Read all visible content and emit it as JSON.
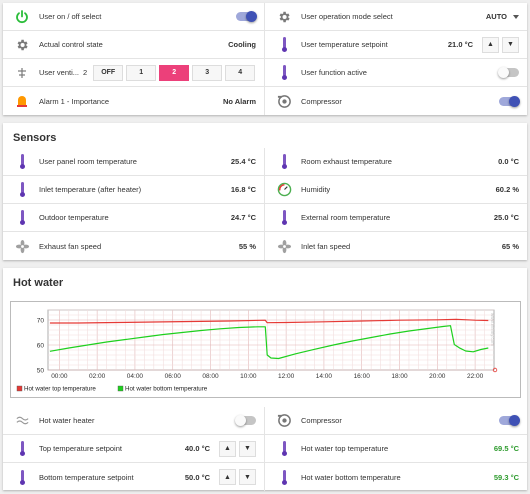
{
  "top": {
    "user_onoff": {
      "label": "User on / off select"
    },
    "op_mode": {
      "label": "User operation mode select",
      "value": "AUTO"
    },
    "control_state": {
      "label": "Actual control state",
      "value": "Cooling"
    },
    "temp_setpoint": {
      "label": "User temperature setpoint",
      "value": "21.0 °C"
    },
    "ventilation": {
      "label": "User venti...",
      "value": "2",
      "options": [
        "OFF",
        "1",
        "2",
        "3",
        "4"
      ],
      "selected": "2"
    },
    "function_active": {
      "label": "User function active"
    },
    "alarm": {
      "label": "Alarm 1 - Importance",
      "value": "No Alarm"
    },
    "compressor": {
      "label": "Compressor"
    }
  },
  "sensors": {
    "title": "Sensors",
    "items": [
      {
        "label": "User panel room temperature",
        "value": "25.4 °C"
      },
      {
        "label": "Room exhaust temperature",
        "value": "0.0 °C"
      },
      {
        "label": "Inlet temperature (after heater)",
        "value": "16.8 °C"
      },
      {
        "label": "Humidity",
        "value": "60.2 %"
      },
      {
        "label": "Outdoor temperature",
        "value": "24.7 °C"
      },
      {
        "label": "External room temperature",
        "value": "25.0 °C"
      },
      {
        "label": "Exhaust fan speed",
        "value": "55 %"
      },
      {
        "label": "Inlet fan speed",
        "value": "65 %"
      }
    ]
  },
  "hot_water": {
    "title": "Hot water",
    "heater": {
      "label": "Hot water heater"
    },
    "compressor": {
      "label": "Compressor"
    },
    "top_setpoint": {
      "label": "Top temperature setpoint",
      "value": "40.0 °C"
    },
    "top_temp": {
      "label": "Hot water top temperature",
      "value": "69.5 °C"
    },
    "bottom_setpoint": {
      "label": "Bottom temperature setpoint",
      "value": "50.0 °C"
    },
    "bottom_temp": {
      "label": "Hot water bottom temperature",
      "value": "59.3 °C"
    }
  },
  "chart_data": {
    "type": "line",
    "watermark": "www.infinity.com",
    "x_ticks": [
      "00:00",
      "02:00",
      "04:00",
      "06:00",
      "08:00",
      "10:00",
      "12:00",
      "14:00",
      "16:00",
      "18:00",
      "20:00",
      "22:00"
    ],
    "xlim": [
      -0.6,
      23.0
    ],
    "ylim": [
      50,
      74
    ],
    "y_ticks": [
      "70",
      "60",
      "50"
    ],
    "grid": true,
    "legend_position": "bottom-left",
    "series": [
      {
        "name": "Hot water top temperature",
        "color": "#e53935",
        "points": [
          [
            -0.5,
            68.8
          ],
          [
            1,
            68.8
          ],
          [
            3,
            69.0
          ],
          [
            5,
            69.2
          ],
          [
            7,
            69.4
          ],
          [
            9,
            69.6
          ],
          [
            10.9,
            69.9
          ],
          [
            11,
            68.9
          ],
          [
            12,
            69.0
          ],
          [
            14,
            69.3
          ],
          [
            16,
            69.6
          ],
          [
            18,
            69.9
          ],
          [
            20,
            70.1
          ],
          [
            21,
            70.3
          ],
          [
            22,
            69.9
          ],
          [
            22.7,
            69.8
          ]
        ]
      },
      {
        "name": "Hot water bottom temperature",
        "color": "#1ed01e",
        "points": [
          [
            -0.5,
            57.5
          ],
          [
            0.5,
            58.8
          ],
          [
            1.5,
            60.0
          ],
          [
            2.5,
            61.2
          ],
          [
            3.5,
            62.2
          ],
          [
            4.5,
            63.2
          ],
          [
            5.5,
            64.2
          ],
          [
            6.5,
            65.0
          ],
          [
            7.5,
            65.8
          ],
          [
            8.5,
            66.5
          ],
          [
            9.5,
            67.0
          ],
          [
            10.5,
            67.3
          ],
          [
            10.9,
            67.3
          ],
          [
            11.0,
            56.0
          ],
          [
            11.2,
            54.8
          ],
          [
            11.6,
            54.6
          ],
          [
            12.5,
            56.5
          ],
          [
            13.5,
            58.3
          ],
          [
            14.5,
            60.0
          ],
          [
            15.5,
            61.6
          ],
          [
            16.5,
            63.0
          ],
          [
            17.5,
            64.4
          ],
          [
            18.5,
            65.6
          ],
          [
            19.5,
            66.6
          ],
          [
            20.3,
            67.4
          ],
          [
            20.7,
            67.7
          ],
          [
            20.9,
            60.2
          ],
          [
            21.2,
            58.7
          ],
          [
            21.5,
            57.6
          ],
          [
            21.9,
            57.3
          ],
          [
            22.3,
            58.2
          ],
          [
            22.7,
            58.8
          ]
        ]
      }
    ]
  }
}
